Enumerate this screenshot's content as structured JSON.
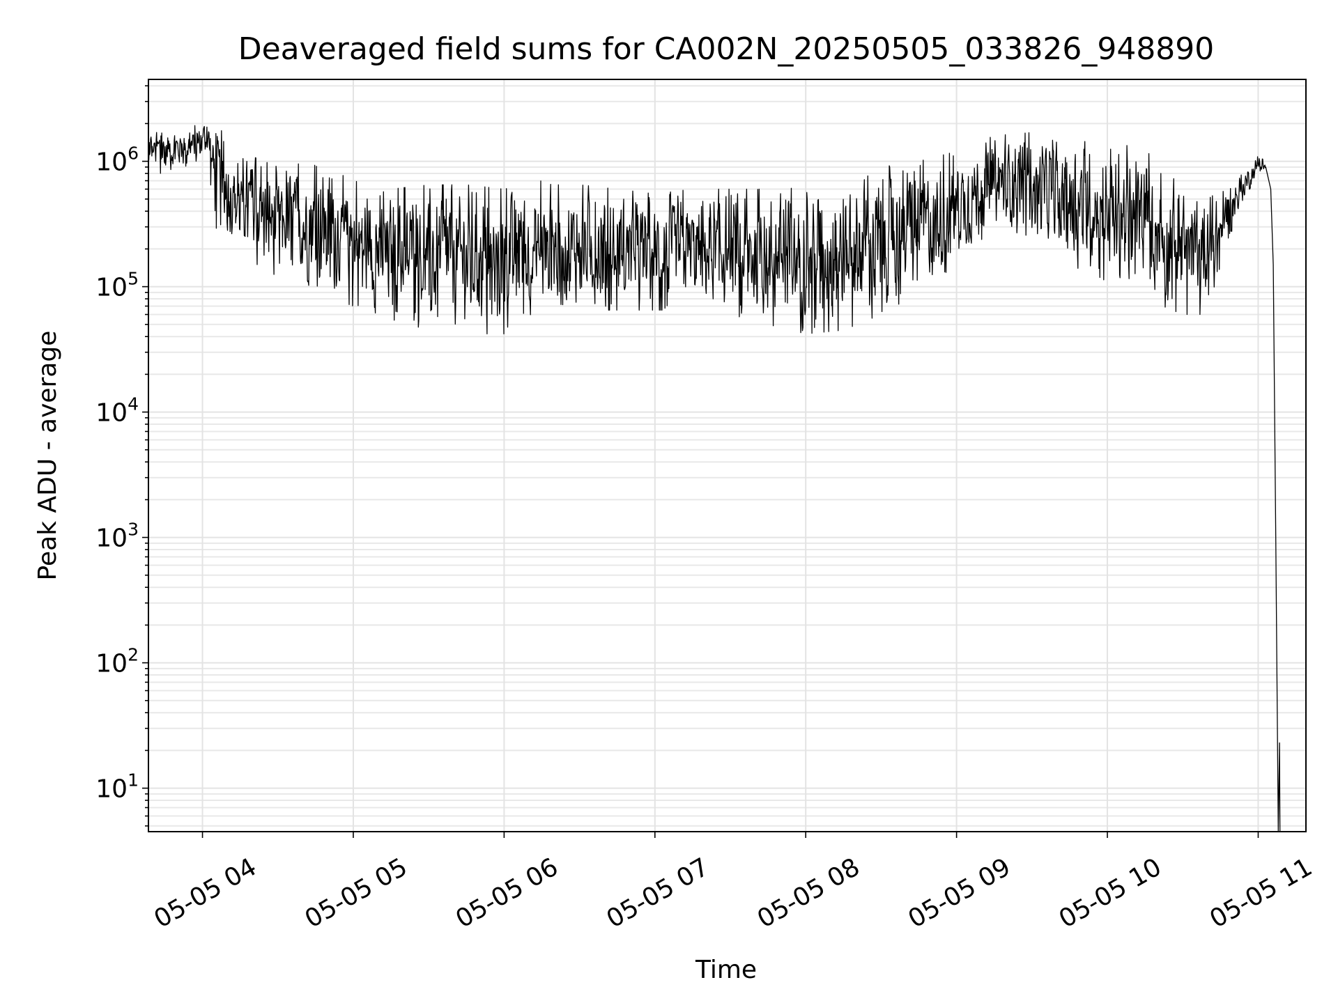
{
  "chart_data": {
    "type": "line",
    "title": "Deaveraged field sums for CA002N_20250505_033826_948890",
    "xlabel": "Time",
    "ylabel": "Peak ADU - average",
    "yscale": "log",
    "ylim": [
      4.5,
      4500000
    ],
    "xlim": [
      "05-05 03:38:30",
      "05-05 11:19:00"
    ],
    "grid": true,
    "grid_minor": true,
    "line_color": "#000000",
    "x_ticks": [
      {
        "label": "05-05 04",
        "value": "05-05 04:00"
      },
      {
        "label": "05-05 05",
        "value": "05-05 05:00"
      },
      {
        "label": "05-05 06",
        "value": "05-05 06:00"
      },
      {
        "label": "05-05 07",
        "value": "05-05 07:00"
      },
      {
        "label": "05-05 08",
        "value": "05-05 08:00"
      },
      {
        "label": "05-05 09",
        "value": "05-05 09:00"
      },
      {
        "label": "05-05 10",
        "value": "05-05 10:00"
      },
      {
        "label": "05-05 11",
        "value": "05-05 11:00"
      }
    ],
    "y_ticks": [
      {
        "base": "10",
        "exp": "1",
        "value": 10
      },
      {
        "base": "10",
        "exp": "2",
        "value": 100
      },
      {
        "base": "10",
        "exp": "3",
        "value": 1000
      },
      {
        "base": "10",
        "exp": "4",
        "value": 10000
      },
      {
        "base": "10",
        "exp": "5",
        "value": 100000
      },
      {
        "base": "10",
        "exp": "6",
        "value": 1000000
      }
    ],
    "series": [
      {
        "envelope": [
          {
            "t": "05-05 03:38:30",
            "lo": 800000,
            "hi": 1900000
          },
          {
            "t": "05-05 03:45",
            "lo": 750000,
            "hi": 2000000
          },
          {
            "t": "05-05 03:55",
            "lo": 950000,
            "hi": 1800000
          },
          {
            "t": "05-05 04:02",
            "lo": 1100000,
            "hi": 2300000
          },
          {
            "t": "05-05 04:05",
            "lo": 300000,
            "hi": 2000000
          },
          {
            "t": "05-05 04:15",
            "lo": 180000,
            "hi": 1200000
          },
          {
            "t": "05-05 04:30",
            "lo": 120000,
            "hi": 900000
          },
          {
            "t": "05-05 04:45",
            "lo": 90000,
            "hi": 1000000
          },
          {
            "t": "05-05 05:00",
            "lo": 70000,
            "hi": 700000
          },
          {
            "t": "05-05 05:15",
            "lo": 55000,
            "hi": 600000
          },
          {
            "t": "05-05 05:30",
            "lo": 45000,
            "hi": 650000
          },
          {
            "t": "05-05 05:45",
            "lo": 42000,
            "hi": 650000
          },
          {
            "t": "05-05 06:00",
            "lo": 42000,
            "hi": 600000
          },
          {
            "t": "05-05 06:15",
            "lo": 60000,
            "hi": 700000
          },
          {
            "t": "05-05 06:30",
            "lo": 65000,
            "hi": 650000
          },
          {
            "t": "05-05 06:45",
            "lo": 65000,
            "hi": 600000
          },
          {
            "t": "05-05 07:00",
            "lo": 65000,
            "hi": 550000
          },
          {
            "t": "05-05 07:15",
            "lo": 65000,
            "hi": 600000
          },
          {
            "t": "05-05 07:30",
            "lo": 60000,
            "hi": 600000
          },
          {
            "t": "05-05 07:45",
            "lo": 50000,
            "hi": 600000
          },
          {
            "t": "05-05 08:00",
            "lo": 42000,
            "hi": 700000
          },
          {
            "t": "05-05 08:15",
            "lo": 45000,
            "hi": 750000
          },
          {
            "t": "05-05 08:30",
            "lo": 60000,
            "hi": 900000
          },
          {
            "t": "05-05 08:45",
            "lo": 90000,
            "hi": 1000000
          },
          {
            "t": "05-05 09:00",
            "lo": 150000,
            "hi": 1200000
          },
          {
            "t": "05-05 09:15",
            "lo": 300000,
            "hi": 1600000
          },
          {
            "t": "05-05 09:30",
            "lo": 250000,
            "hi": 1700000
          },
          {
            "t": "05-05 09:45",
            "lo": 150000,
            "hi": 1400000
          },
          {
            "t": "05-05 10:00",
            "lo": 110000,
            "hi": 1500000
          },
          {
            "t": "05-05 10:15",
            "lo": 80000,
            "hi": 1200000
          },
          {
            "t": "05-05 10:30",
            "lo": 60000,
            "hi": 800000
          },
          {
            "t": "05-05 10:40",
            "lo": 60000,
            "hi": 500000
          },
          {
            "t": "05-05 10:50",
            "lo": 300000,
            "hi": 700000
          },
          {
            "t": "05-05 11:00",
            "lo": 850000,
            "hi": 1100000
          },
          {
            "t": "05-05 11:03",
            "lo": 800000,
            "hi": 1000000
          }
        ],
        "tail": [
          {
            "t": "05-05 11:03",
            "y": 900000
          },
          {
            "t": "05-05 11:05",
            "y": 600000
          },
          {
            "t": "05-05 11:06",
            "y": 150000
          },
          {
            "t": "05-05 11:07",
            "y": 1000
          },
          {
            "t": "05-05 11:08",
            "y": 4.5
          },
          {
            "t": "05-05 11:08:30",
            "y": 23
          },
          {
            "t": "05-05 11:08:40",
            "y": 4.5
          }
        ]
      }
    ]
  }
}
